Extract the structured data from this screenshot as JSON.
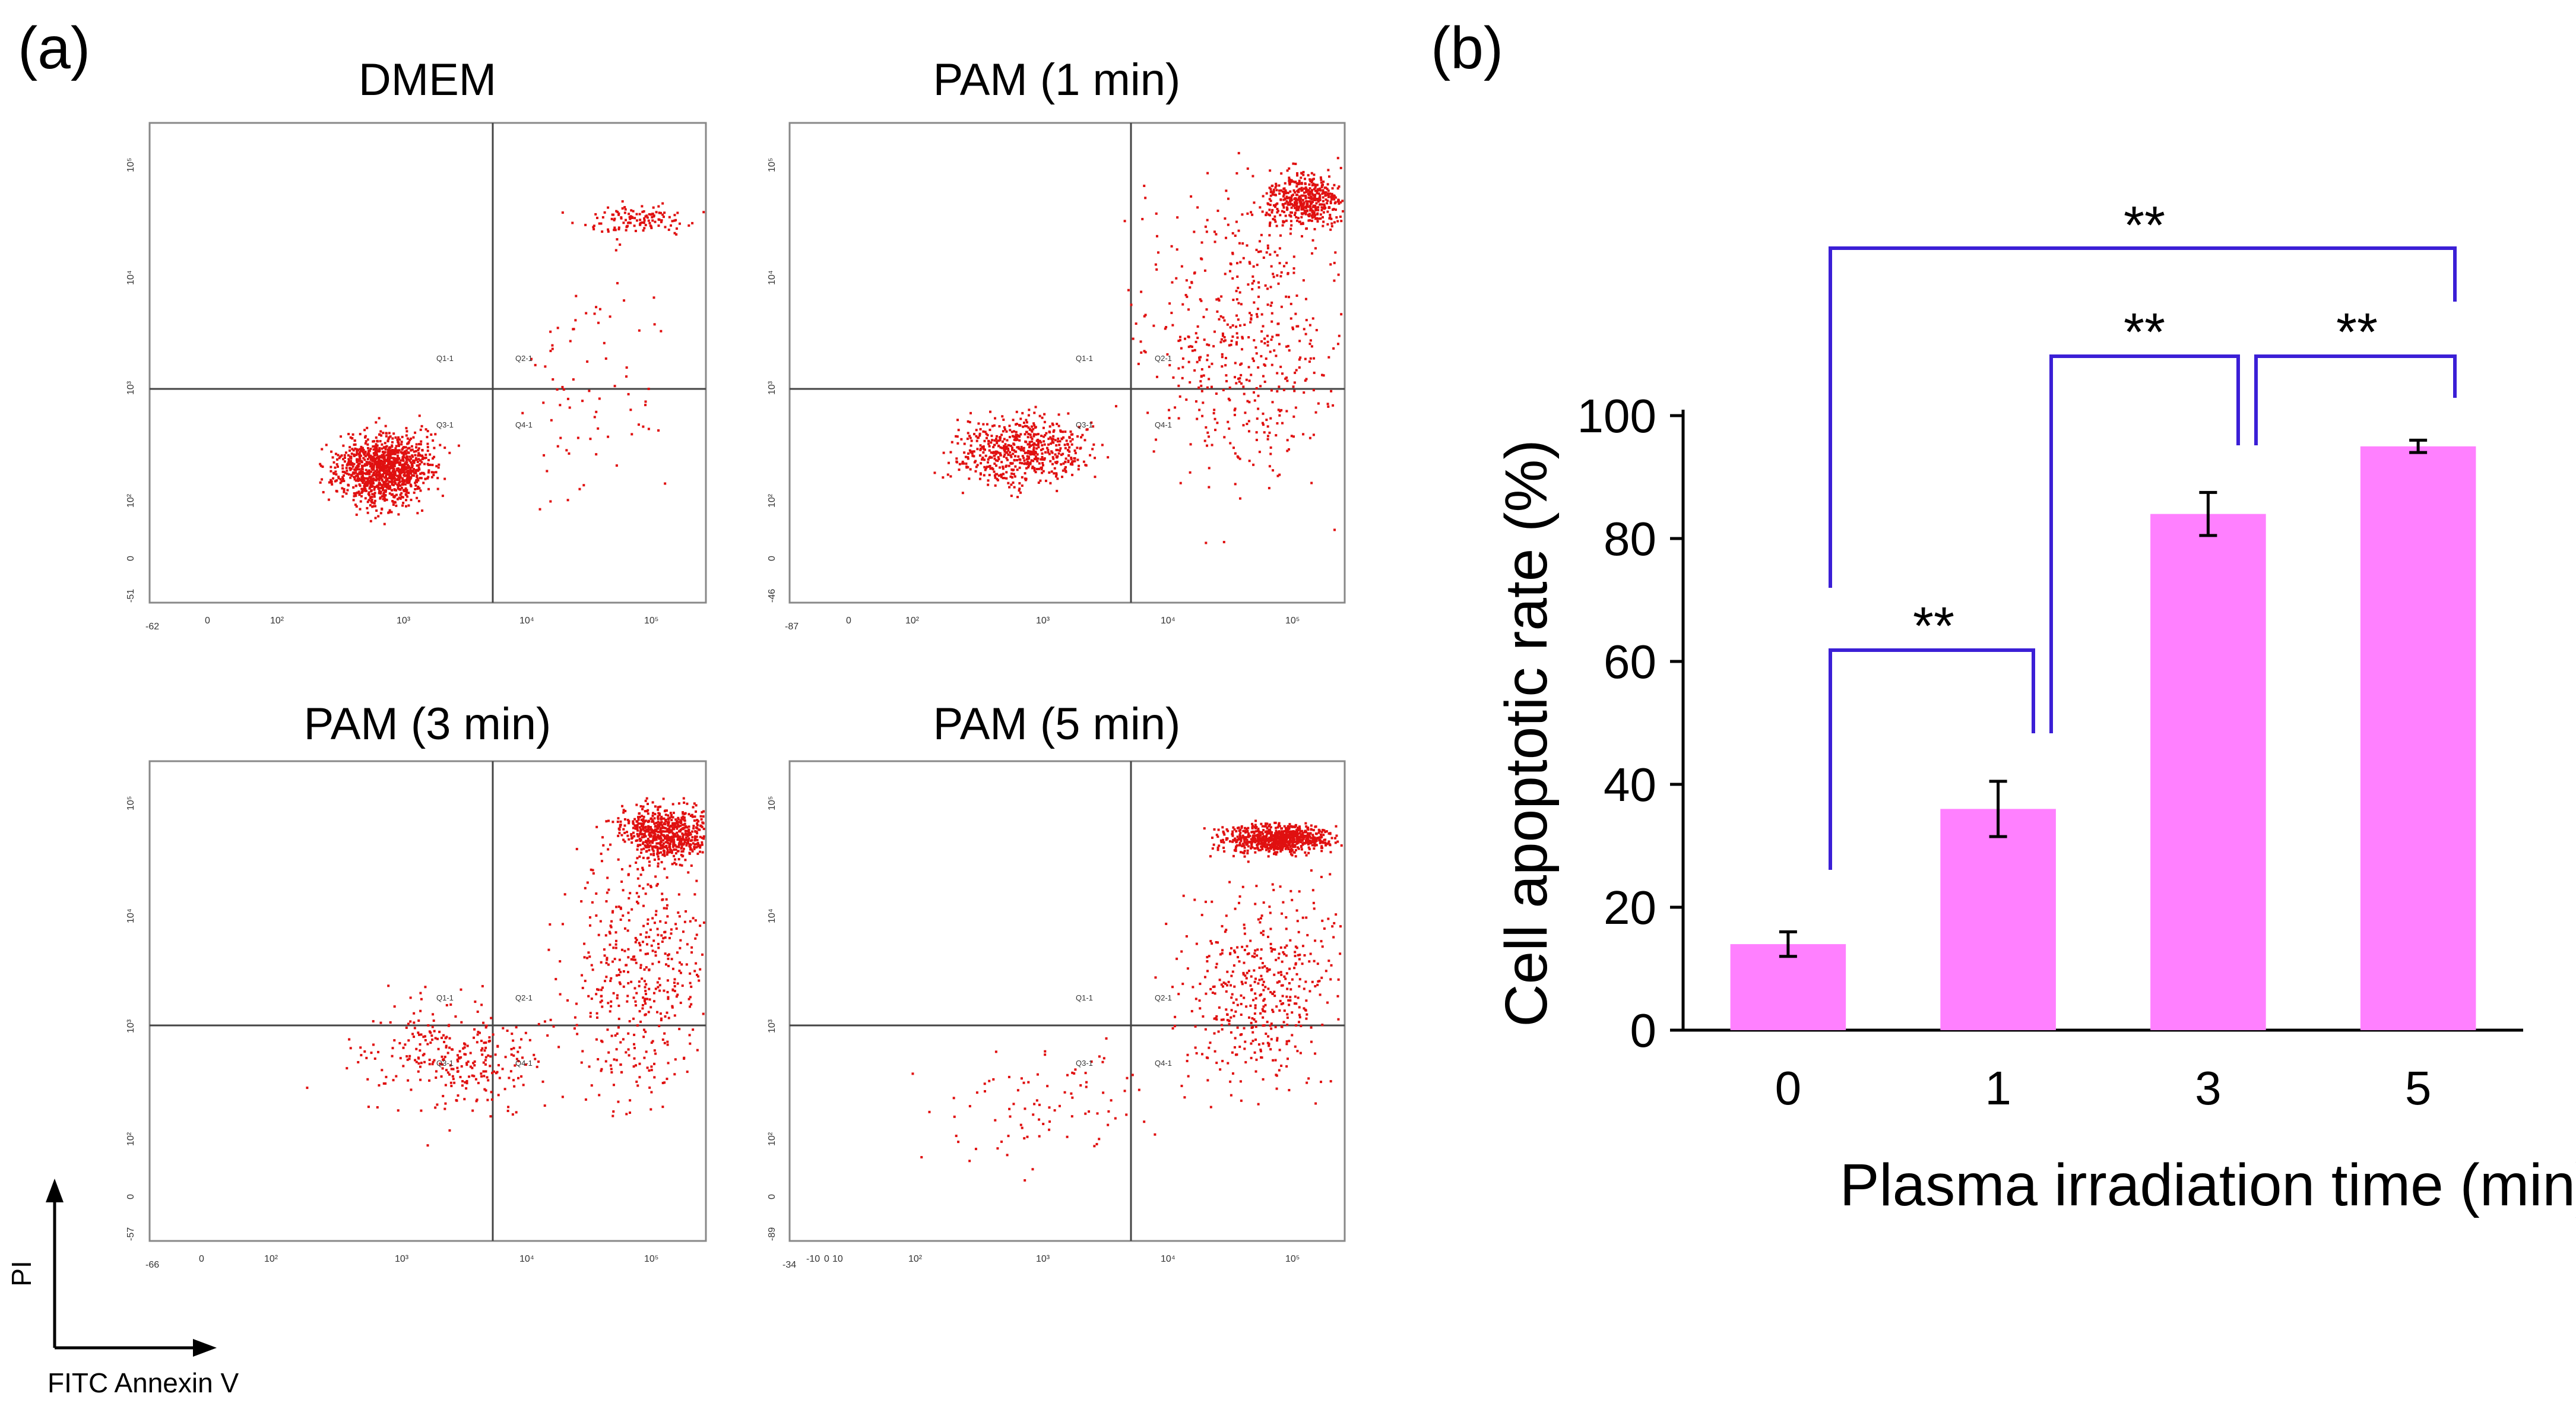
{
  "panel_a": {
    "label": "(a)",
    "axis_y_label": "PI",
    "axis_x_label": "FITC Annexin V",
    "quadrant_labels": [
      "Q1-1",
      "Q2-1",
      "Q3-1",
      "Q4-1"
    ],
    "plots": [
      {
        "title": "DMEM",
        "x_ticks": [
          "0",
          "10²",
          "10³",
          "10⁴",
          "10⁵"
        ],
        "y_ticks": [
          "10²",
          "10³",
          "10⁴",
          "10⁵"
        ],
        "x_min_label": "-62",
        "y_min_label": "-51",
        "y_zero_label": "0"
      },
      {
        "title": "PAM (1 min)",
        "x_ticks": [
          "0",
          "10²",
          "10³",
          "10⁴",
          "10⁵"
        ],
        "y_ticks": [
          "10²",
          "10³",
          "10⁴",
          "10⁵"
        ],
        "x_min_label": "-87",
        "y_min_label": "-46",
        "y_zero_label": "0"
      },
      {
        "title": "PAM (3 min)",
        "x_ticks": [
          "0",
          "10²",
          "10³",
          "10⁴",
          "10⁵"
        ],
        "y_ticks": [
          "10²",
          "10³",
          "10⁴",
          "10⁵"
        ],
        "x_min_label": "-66",
        "y_min_label": "-57",
        "y_zero_label": "0"
      },
      {
        "title": "PAM (5 min)",
        "x_ticks": [
          "-10",
          "0",
          "10",
          "10²",
          "10³",
          "10⁴",
          "10⁵"
        ],
        "y_ticks": [
          "10²",
          "10³",
          "10⁴",
          "10⁵"
        ],
        "x_min_label": "-34",
        "y_min_label": "-89",
        "y_zero_label": "0"
      }
    ]
  },
  "panel_b": {
    "label": "(b)",
    "significance_marks": [
      "**",
      "**",
      "**",
      "**"
    ]
  },
  "chart_data": [
    {
      "type": "bar",
      "title": "",
      "xlabel": "Plasma irradiation time (min)",
      "ylabel": "Cell apoptotic rate (%)",
      "categories": [
        "0",
        "1",
        "3",
        "5"
      ],
      "values": [
        14,
        36,
        84,
        95
      ],
      "errors": [
        2.0,
        4.5,
        3.5,
        1.0
      ],
      "ylim": [
        0,
        100
      ],
      "yticks": [
        0,
        20,
        40,
        60,
        80,
        100
      ],
      "bar_color": "#ff80ff",
      "error_color": "#000000",
      "bracket_color": "#3b1fd6",
      "grid": false,
      "comparisons": [
        {
          "from": "0",
          "to": "1",
          "label": "**"
        },
        {
          "from": "1",
          "to": "3",
          "label": "**"
        },
        {
          "from": "3",
          "to": "5",
          "label": "**"
        },
        {
          "from": "0",
          "to": "5",
          "label": "**"
        }
      ]
    }
  ]
}
